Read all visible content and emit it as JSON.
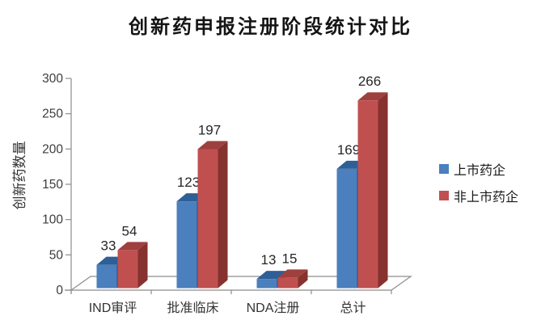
{
  "chart_data": {
    "type": "bar",
    "style": "3d-clustered-column",
    "title": "创新药申报注册阶段统计对比",
    "xlabel": "",
    "ylabel": "创新药数量",
    "categories": [
      "IND审评",
      "批准临床",
      "NDA注册",
      "总计"
    ],
    "series": [
      {
        "name": "上市药企",
        "color": "#4b7fbd",
        "top_color": "#2e5f96",
        "side_color": "#2c517f",
        "values": [
          33,
          123,
          13,
          169
        ]
      },
      {
        "name": "非上市药企",
        "color": "#c05050",
        "top_color": "#9d403e",
        "side_color": "#86322f",
        "values": [
          54,
          197,
          15,
          266
        ]
      }
    ],
    "ylim": [
      0,
      300
    ],
    "yticks": [
      0,
      50,
      100,
      150,
      200,
      250,
      300
    ],
    "grid": false,
    "legend_position": "right",
    "axis_color": "#8c8c8c",
    "tick_label_color": "#3d3d3d",
    "value_label_color": "#262626",
    "category_label_color": "#333333"
  }
}
